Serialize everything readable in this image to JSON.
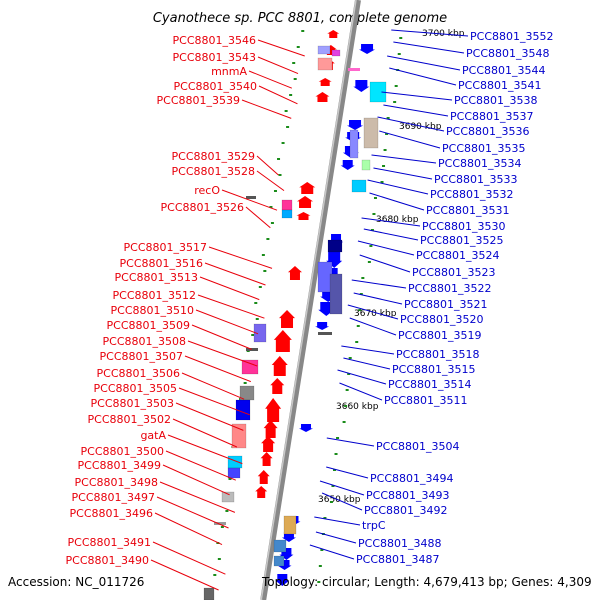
{
  "title": "Cyanothece sp. PCC 8801, complete genome",
  "footer": {
    "accession": "Accession: NC_011726",
    "topology": "Topology: circular; Length: 4,679,413 bp; Genes: 4,309"
  },
  "kbp_markers": [
    "3700 kbp",
    "3690 kbp",
    "3680 kbp",
    "3670 kbp",
    "3660 kbp",
    "3650 kbp"
  ],
  "left_labels": [
    "PCC8801_3546",
    "PCC8801_3543",
    "mnmA",
    "PCC8801_3540",
    "PCC8801_3539",
    "PCC8801_3529",
    "PCC8801_3528",
    "recO",
    "PCC8801_3526",
    "PCC8801_3517",
    "PCC8801_3516",
    "PCC8801_3513",
    "PCC8801_3512",
    "PCC8801_3510",
    "PCC8801_3509",
    "PCC8801_3508",
    "PCC8801_3507",
    "PCC8801_3506",
    "PCC8801_3505",
    "PCC8801_3503",
    "PCC8801_3502",
    "gatA",
    "PCC8801_3500",
    "PCC8801_3499",
    "PCC8801_3498",
    "PCC8801_3497",
    "PCC8801_3496",
    "PCC8801_3491",
    "PCC8801_3490"
  ],
  "right_labels": [
    "PCC8801_3552",
    "PCC8801_3548",
    "PCC8801_3544",
    "PCC8801_3541",
    "PCC8801_3538",
    "PCC8801_3537",
    "PCC8801_3536",
    "PCC8801_3535",
    "PCC8801_3534",
    "PCC8801_3533",
    "PCC8801_3532",
    "PCC8801_3531",
    "PCC8801_3530",
    "PCC8801_3525",
    "PCC8801_3524",
    "PCC8801_3523",
    "PCC8801_3522",
    "PCC8801_3521",
    "PCC8801_3520",
    "PCC8801_3519",
    "PCC8801_3518",
    "PCC8801_3515",
    "PCC8801_3514",
    "PCC8801_3511",
    "PCC8801_3504",
    "PCC8801_3494",
    "PCC8801_3493",
    "PCC8801_3492",
    "trpC",
    "PCC8801_3488",
    "PCC8801_3487"
  ],
  "colors": {
    "forward_strand": "#ff0000",
    "reverse_strand": "#0000ff",
    "left_label": "#e8000b",
    "right_label": "#0000cc",
    "backbone": "#888888",
    "tick": "#1a8c1a"
  }
}
